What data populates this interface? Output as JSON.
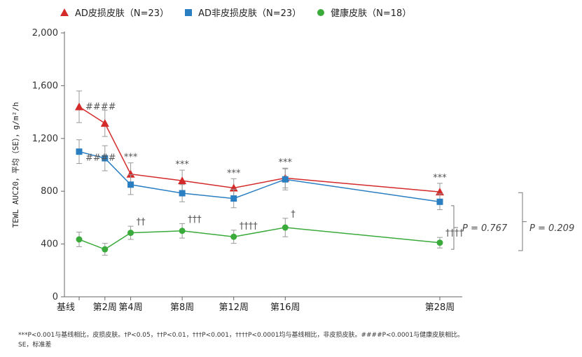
{
  "chart_data": {
    "type": "line",
    "title": "",
    "xlabel": "",
    "ylabel": "TEWL AUC20，平均（SE），g/m²/h",
    "categories": [
      "基线",
      "第2周",
      "第4周",
      "第8周",
      "第12周",
      "第16周",
      "第28周"
    ],
    "weeks": [
      0,
      2,
      4,
      8,
      12,
      16,
      28
    ],
    "ylim": [
      0,
      2000
    ],
    "yticks": [
      "0",
      "400",
      "800",
      "1,200",
      "1,600",
      "2,000"
    ],
    "ytick_values": [
      0,
      400,
      800,
      1200,
      1600,
      2000
    ],
    "series": [
      {
        "name": "AD皮损皮肤（N=23）",
        "color": "#d42a2a",
        "marker": "triangle",
        "values": [
          1440,
          1315,
          930,
          880,
          825,
          900,
          795
        ],
        "se": [
          120,
          100,
          85,
          80,
          70,
          75,
          65
        ]
      },
      {
        "name": "AD非皮损皮肤（N=23）",
        "color": "#2a7ec2",
        "marker": "square",
        "values": [
          1100,
          1050,
          850,
          785,
          745,
          890,
          720
        ],
        "se": [
          90,
          95,
          75,
          65,
          70,
          80,
          60
        ]
      },
      {
        "name": "健康皮肤（N=18）",
        "color": "#3aaa3a",
        "marker": "circle",
        "values": [
          435,
          360,
          485,
          500,
          455,
          525,
          410
        ],
        "se": [
          55,
          45,
          50,
          55,
          50,
          70,
          40
        ]
      }
    ],
    "annotations": [
      {
        "text": "####",
        "series": 0,
        "index": 0
      },
      {
        "text": "####",
        "series": 1,
        "index": 0
      },
      {
        "text": "***",
        "series": 0,
        "index": 2
      },
      {
        "text": "***",
        "series": 0,
        "index": 3
      },
      {
        "text": "***",
        "series": 0,
        "index": 4
      },
      {
        "text": "***",
        "series": 0,
        "index": 5
      },
      {
        "text": "***",
        "series": 0,
        "index": 6
      },
      {
        "text": "††",
        "series": 2,
        "index": 2
      },
      {
        "text": "†††",
        "series": 2,
        "index": 3
      },
      {
        "text": "††††",
        "series": 2,
        "index": 4
      },
      {
        "text": "†",
        "series": 2,
        "index": 5
      },
      {
        "text": "††††",
        "series": 2,
        "index": 6
      }
    ],
    "pvalues": [
      {
        "text": "P = 0.767",
        "compares": "AD非皮损皮肤 vs 健康皮肤"
      },
      {
        "text": "P = 0.209",
        "compares": "AD皮损皮肤 vs 健康皮肤"
      }
    ]
  },
  "footnote": {
    "line1": "***P<0.001与基线相比，皮损皮肤。†P<0.05，††P<0.01，†††P<0.001，††††P<0.0001均与基线相比，非皮损皮肤。####P<0.0001与健康皮肤相比。",
    "line2": "SE，标准差"
  }
}
